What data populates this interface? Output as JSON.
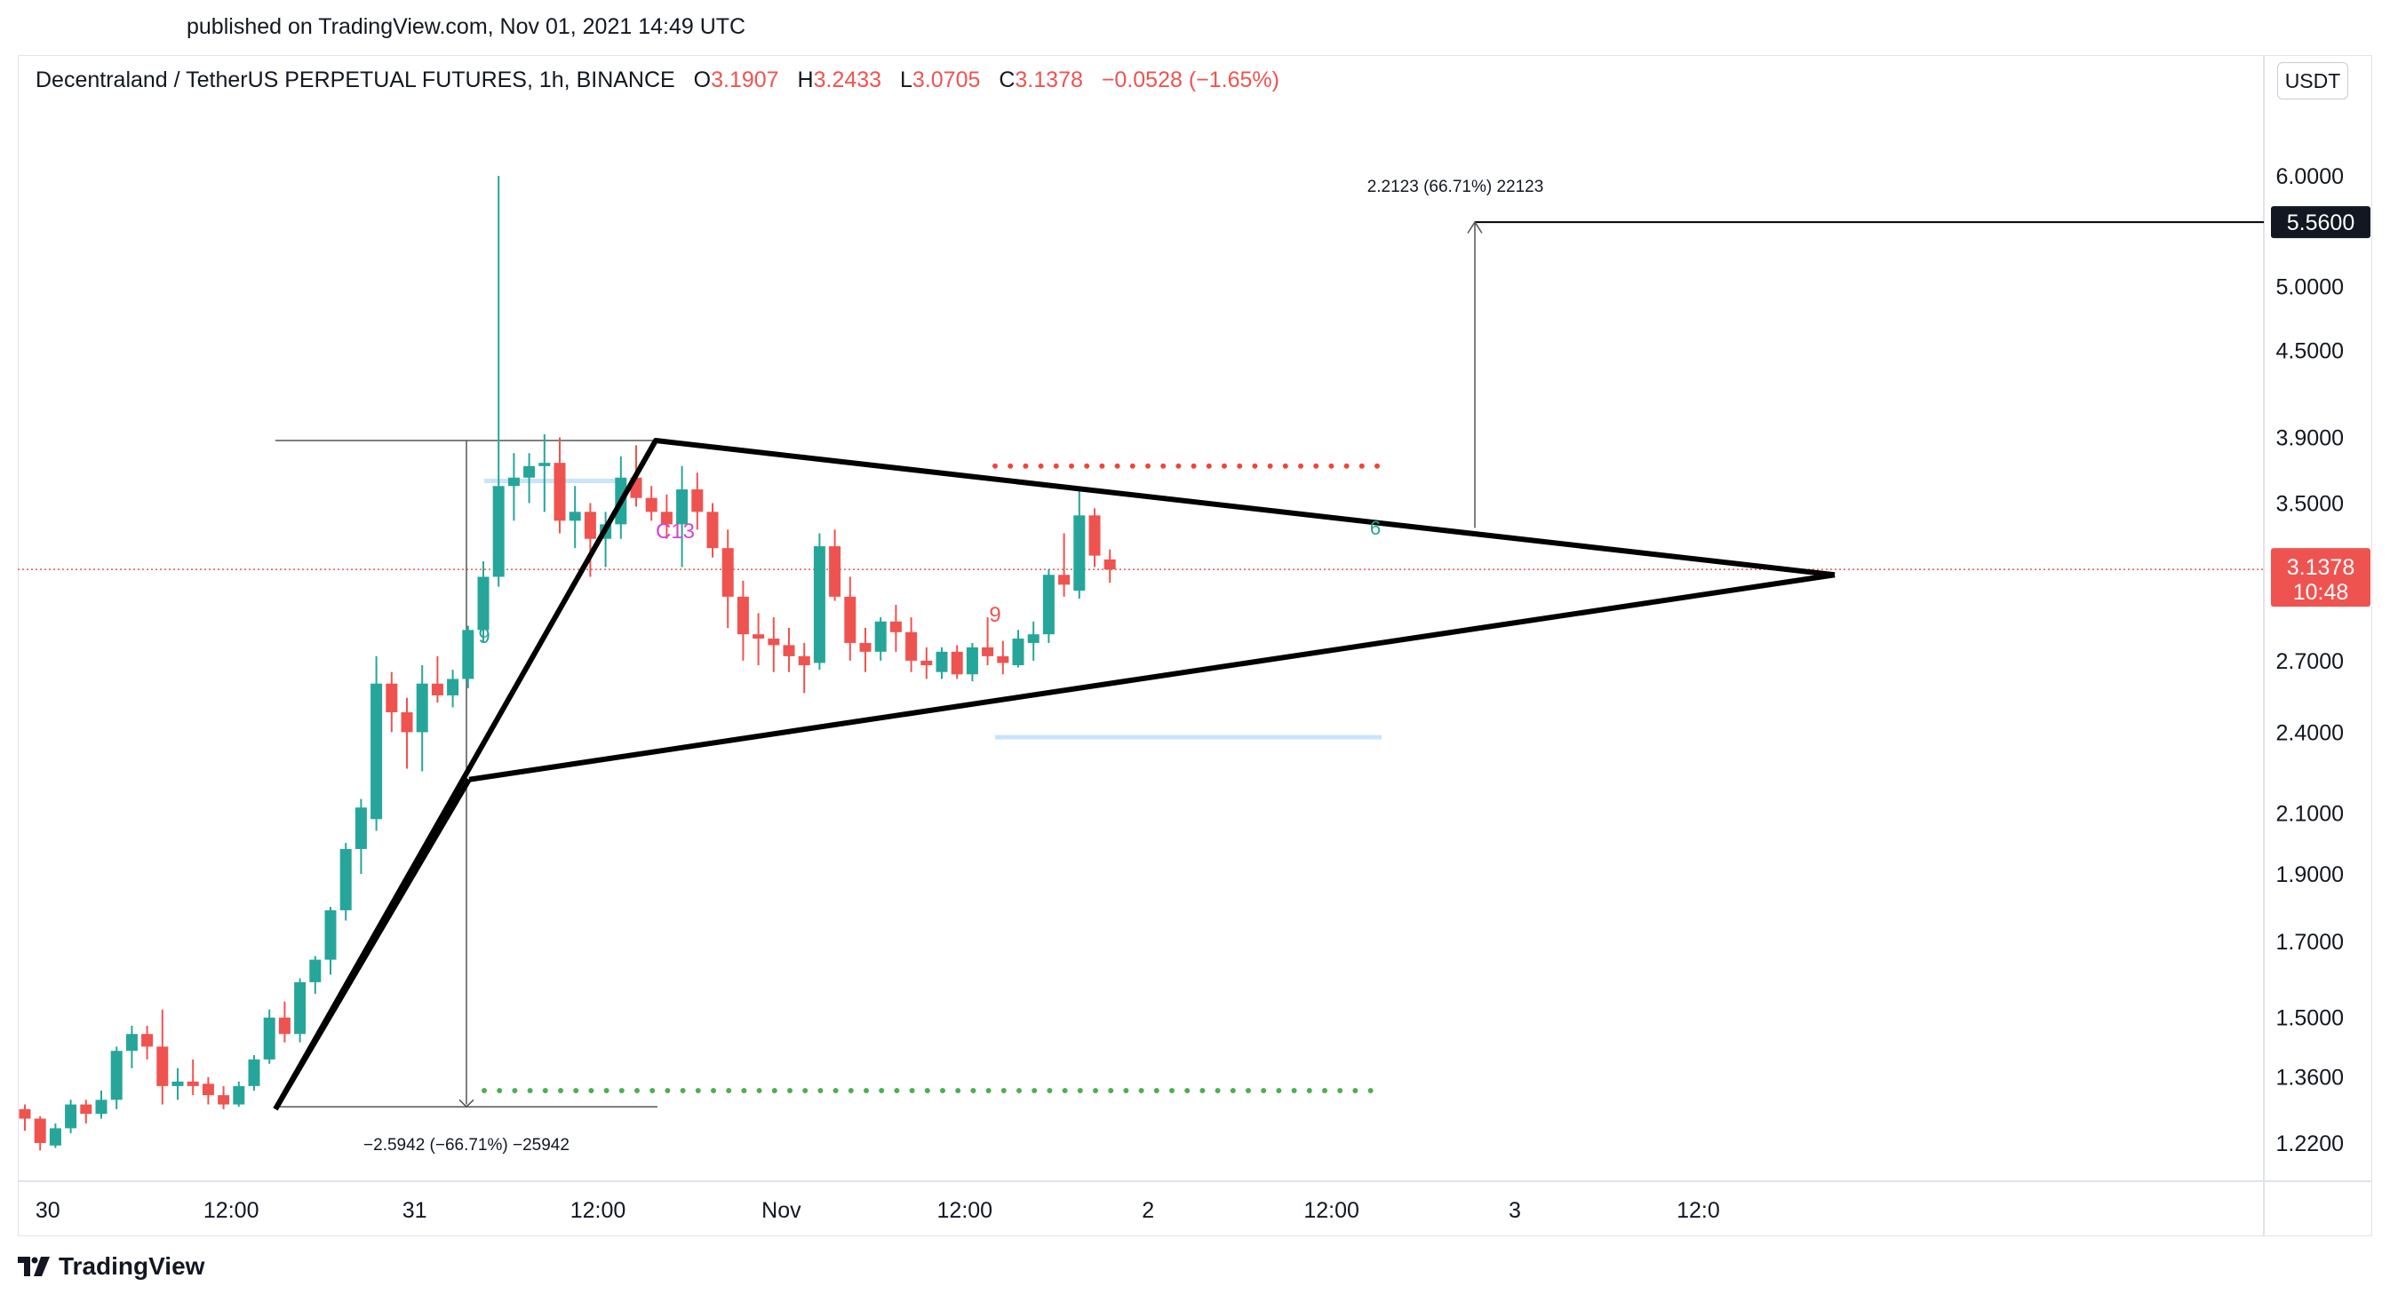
{
  "published": "published on TradingView.com, Nov 01, 2021 14:49 UTC",
  "symbol": "Decentraland / TetherUS PERPETUAL FUTURES, 1h, BINANCE",
  "ohlc": {
    "o_label": "O",
    "o": "3.1907",
    "h_label": "H",
    "h": "3.2433",
    "l_label": "L",
    "l": "3.0705",
    "c_label": "C",
    "c": "3.1378",
    "change": "−0.0528 (−1.65%)"
  },
  "currency": "USDT",
  "brand": "TradingView",
  "colors": {
    "up": "#26a69a",
    "down": "#ef5350",
    "line": "#000000",
    "target_bg": "#131722",
    "price_tag": "#ef5350",
    "box_line": "#c9e4fb",
    "green_dots": "#4caf50",
    "red_dots": "#f44336",
    "td_purple": "#d543d5",
    "td_orange": "#ff9800"
  },
  "chart_data": {
    "type": "candlestick",
    "scale": "log",
    "ylim": [
      1.1,
      6.9
    ],
    "x_labels": [
      "30",
      "12:00",
      "31",
      "12:00",
      "Nov",
      "12:00",
      "2",
      "12:00",
      "3",
      "12:0"
    ],
    "y_ticks": [
      "6.0000",
      "5.0000",
      "4.5000",
      "3.9000",
      "3.5000",
      "2.7000",
      "2.4000",
      "2.1000",
      "1.9000",
      "1.7000",
      "1.5000",
      "1.3600",
      "1.2200"
    ],
    "last_price": "3.1378",
    "countdown": "10:48",
    "target_label": "5.5600",
    "annotations": {
      "measure_up": "2.2123 (66.71%) 22123",
      "measure_down": "−2.5942 (−66.71%) −25942",
      "td_nine_1": "9",
      "td_c13": "C13",
      "td_nine_2": "9",
      "td_six": "6"
    },
    "candles": [
      [
        1.29,
        1.3,
        1.245,
        1.27
      ],
      [
        1.27,
        1.275,
        1.205,
        1.22
      ],
      [
        1.215,
        1.26,
        1.21,
        1.25
      ],
      [
        1.25,
        1.31,
        1.24,
        1.3
      ],
      [
        1.3,
        1.31,
        1.26,
        1.28
      ],
      [
        1.28,
        1.33,
        1.27,
        1.31
      ],
      [
        1.31,
        1.43,
        1.29,
        1.42
      ],
      [
        1.42,
        1.48,
        1.38,
        1.46
      ],
      [
        1.46,
        1.48,
        1.4,
        1.43
      ],
      [
        1.43,
        1.52,
        1.3,
        1.34
      ],
      [
        1.34,
        1.38,
        1.31,
        1.35
      ],
      [
        1.35,
        1.4,
        1.32,
        1.34
      ],
      [
        1.345,
        1.36,
        1.3,
        1.32
      ],
      [
        1.32,
        1.34,
        1.29,
        1.3
      ],
      [
        1.3,
        1.35,
        1.295,
        1.34
      ],
      [
        1.34,
        1.41,
        1.33,
        1.4
      ],
      [
        1.4,
        1.52,
        1.39,
        1.5
      ],
      [
        1.5,
        1.54,
        1.44,
        1.46
      ],
      [
        1.46,
        1.6,
        1.44,
        1.59
      ],
      [
        1.59,
        1.66,
        1.56,
        1.65
      ],
      [
        1.65,
        1.8,
        1.61,
        1.79
      ],
      [
        1.79,
        2.0,
        1.76,
        1.98
      ],
      [
        1.98,
        2.15,
        1.9,
        2.12
      ],
      [
        2.08,
        2.72,
        2.04,
        2.6
      ],
      [
        2.6,
        2.65,
        2.4,
        2.48
      ],
      [
        2.48,
        2.54,
        2.26,
        2.4
      ],
      [
        2.4,
        2.68,
        2.25,
        2.6
      ],
      [
        2.6,
        2.72,
        2.52,
        2.55
      ],
      [
        2.55,
        2.66,
        2.5,
        2.62
      ],
      [
        2.62,
        2.86,
        2.58,
        2.84
      ],
      [
        2.84,
        3.18,
        2.78,
        3.1
      ],
      [
        3.1,
        6.0,
        3.05,
        3.6
      ],
      [
        3.6,
        3.8,
        3.4,
        3.65
      ],
      [
        3.65,
        3.8,
        3.5,
        3.72
      ],
      [
        3.72,
        3.92,
        3.45,
        3.74
      ],
      [
        3.74,
        3.9,
        3.33,
        3.4
      ],
      [
        3.4,
        3.6,
        3.25,
        3.45
      ],
      [
        3.45,
        3.5,
        3.1,
        3.3
      ],
      [
        3.3,
        3.45,
        3.15,
        3.38
      ],
      [
        3.38,
        3.78,
        3.3,
        3.65
      ],
      [
        3.65,
        3.85,
        3.48,
        3.53
      ],
      [
        3.53,
        3.6,
        3.4,
        3.45
      ],
      [
        3.45,
        3.55,
        3.3,
        3.38
      ],
      [
        3.38,
        3.72,
        3.15,
        3.58
      ],
      [
        3.58,
        3.68,
        3.35,
        3.45
      ],
      [
        3.45,
        3.5,
        3.2,
        3.25
      ],
      [
        3.25,
        3.35,
        2.85,
        3.0
      ],
      [
        3.0,
        3.08,
        2.7,
        2.82
      ],
      [
        2.82,
        2.92,
        2.68,
        2.8
      ],
      [
        2.8,
        2.9,
        2.65,
        2.77
      ],
      [
        2.77,
        2.85,
        2.65,
        2.72
      ],
      [
        2.72,
        2.78,
        2.56,
        2.68
      ],
      [
        2.69,
        3.33,
        2.66,
        3.26
      ],
      [
        3.26,
        3.35,
        2.98,
        3.0
      ],
      [
        3.0,
        3.1,
        2.7,
        2.78
      ],
      [
        2.78,
        2.85,
        2.65,
        2.74
      ],
      [
        2.74,
        2.9,
        2.7,
        2.88
      ],
      [
        2.88,
        2.96,
        2.74,
        2.83
      ],
      [
        2.83,
        2.9,
        2.65,
        2.7
      ],
      [
        2.7,
        2.76,
        2.62,
        2.68
      ],
      [
        2.65,
        2.76,
        2.62,
        2.74
      ],
      [
        2.74,
        2.77,
        2.62,
        2.64
      ],
      [
        2.64,
        2.78,
        2.61,
        2.76
      ],
      [
        2.76,
        2.9,
        2.68,
        2.72
      ],
      [
        2.72,
        2.79,
        2.64,
        2.69
      ],
      [
        2.68,
        2.84,
        2.67,
        2.8
      ],
      [
        2.78,
        2.88,
        2.7,
        2.82
      ],
      [
        2.82,
        3.14,
        2.78,
        3.11
      ],
      [
        3.11,
        3.33,
        3.0,
        3.06
      ],
      [
        3.03,
        3.58,
        2.99,
        3.43
      ],
      [
        3.43,
        3.47,
        3.15,
        3.21
      ],
      [
        3.19,
        3.243,
        3.07,
        3.138
      ]
    ]
  }
}
